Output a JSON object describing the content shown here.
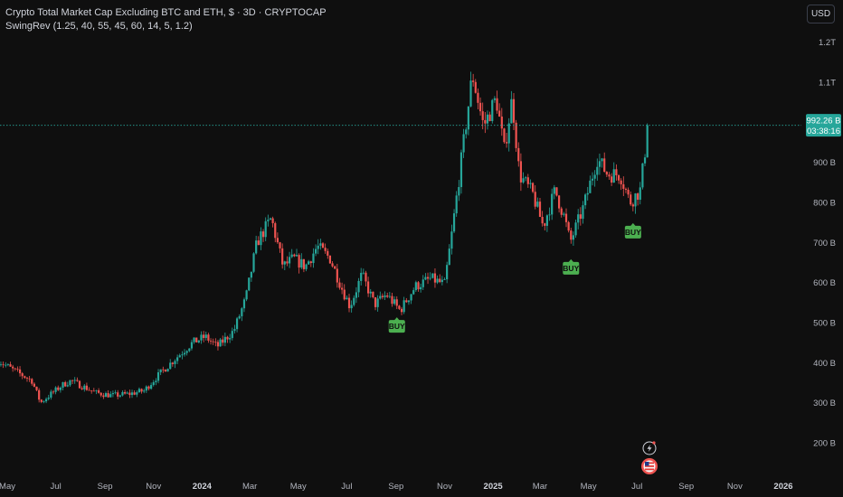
{
  "header": {
    "title": "Crypto Total Market Cap Excluding BTC and ETH, $ · 3D · CRYPTOCAP",
    "indicator": "SwingRev (1.25, 40, 55, 45, 60, 14, 5, 1.2)"
  },
  "currency_button": "USD",
  "colors": {
    "up": "#26a69a",
    "down": "#ef5350",
    "buy": "#4caf50",
    "bg": "#0f0f0f",
    "price_line": "#26a69a"
  },
  "last_price": {
    "value": "992.26 B",
    "countdown": "03:38:16"
  },
  "icons": [
    "lightning-icon",
    "flag-icon"
  ],
  "chart_data": {
    "type": "candlestick",
    "title": "Crypto Total Market Cap Excluding BTC and ETH, $ · 3D · CRYPTOCAP",
    "y_unit": "billions USD",
    "y_ticks": [
      {
        "value": 200,
        "label": "200 B"
      },
      {
        "value": 300,
        "label": "300 B"
      },
      {
        "value": 400,
        "label": "400 B"
      },
      {
        "value": 500,
        "label": "500 B"
      },
      {
        "value": 600,
        "label": "600 B"
      },
      {
        "value": 700,
        "label": "700 B"
      },
      {
        "value": 800,
        "label": "800 B"
      },
      {
        "value": 900,
        "label": "900 B"
      },
      {
        "value": 1100,
        "label": "1.1T"
      },
      {
        "value": 1200,
        "label": "1.2T"
      }
    ],
    "x_ticks": [
      {
        "date": "2023-05-01",
        "label": "May"
      },
      {
        "date": "2023-07-01",
        "label": "Jul"
      },
      {
        "date": "2023-09-01",
        "label": "Sep"
      },
      {
        "date": "2023-11-01",
        "label": "Nov"
      },
      {
        "date": "2024-01-01",
        "label": "2024",
        "bold": true
      },
      {
        "date": "2024-03-01",
        "label": "Mar"
      },
      {
        "date": "2024-05-01",
        "label": "May"
      },
      {
        "date": "2024-07-01",
        "label": "Jul"
      },
      {
        "date": "2024-09-01",
        "label": "Sep"
      },
      {
        "date": "2024-11-01",
        "label": "Nov"
      },
      {
        "date": "2025-01-01",
        "label": "2025",
        "bold": true
      },
      {
        "date": "2025-03-01",
        "label": "Mar"
      },
      {
        "date": "2025-05-01",
        "label": "May"
      },
      {
        "date": "2025-07-01",
        "label": "Jul"
      },
      {
        "date": "2025-09-01",
        "label": "Sep"
      },
      {
        "date": "2025-11-01",
        "label": "Nov"
      },
      {
        "date": "2026-01-01",
        "label": "2026",
        "bold": true
      }
    ],
    "path_points": [
      [
        "2023-04-20",
        405
      ],
      [
        "2023-05-10",
        380
      ],
      [
        "2023-06-01",
        355
      ],
      [
        "2023-06-12",
        300
      ],
      [
        "2023-06-25",
        322
      ],
      [
        "2023-07-10",
        345
      ],
      [
        "2023-07-20",
        355
      ],
      [
        "2023-08-10",
        335
      ],
      [
        "2023-08-20",
        325
      ],
      [
        "2023-09-10",
        318
      ],
      [
        "2023-10-01",
        322
      ],
      [
        "2023-10-20",
        330
      ],
      [
        "2023-11-10",
        375
      ],
      [
        "2023-12-01",
        415
      ],
      [
        "2023-12-20",
        450
      ],
      [
        "2024-01-05",
        465
      ],
      [
        "2024-01-20",
        440
      ],
      [
        "2024-02-10",
        480
      ],
      [
        "2024-02-25",
        560
      ],
      [
        "2024-03-10",
        700
      ],
      [
        "2024-03-28",
        760
      ],
      [
        "2024-04-12",
        640
      ],
      [
        "2024-04-25",
        660
      ],
      [
        "2024-05-10",
        640
      ],
      [
        "2024-05-25",
        690
      ],
      [
        "2024-06-10",
        660
      ],
      [
        "2024-06-25",
        585
      ],
      [
        "2024-07-05",
        540
      ],
      [
        "2024-07-20",
        620
      ],
      [
        "2024-08-05",
        545
      ],
      [
        "2024-08-20",
        570
      ],
      [
        "2024-09-06",
        530
      ],
      [
        "2024-09-25",
        590
      ],
      [
        "2024-10-15",
        610
      ],
      [
        "2024-11-01",
        595
      ],
      [
        "2024-11-10",
        720
      ],
      [
        "2024-11-25",
        950
      ],
      [
        "2024-12-06",
        1120
      ],
      [
        "2024-12-20",
        990
      ],
      [
        "2025-01-05",
        1060
      ],
      [
        "2025-01-15",
        930
      ],
      [
        "2025-01-25",
        1060
      ],
      [
        "2025-02-03",
        870
      ],
      [
        "2025-02-20",
        820
      ],
      [
        "2025-03-05",
        740
      ],
      [
        "2025-03-20",
        830
      ],
      [
        "2025-04-01",
        760
      ],
      [
        "2025-04-08",
        700
      ],
      [
        "2025-04-25",
        790
      ],
      [
        "2025-05-12",
        910
      ],
      [
        "2025-05-25",
        870
      ],
      [
        "2025-06-10",
        870
      ],
      [
        "2025-06-22",
        800
      ],
      [
        "2025-07-05",
        830
      ],
      [
        "2025-07-15",
        992
      ]
    ],
    "signals": [
      {
        "date": "2024-09-02",
        "price": 520,
        "label": "BUY"
      },
      {
        "date": "2025-04-09",
        "price": 665,
        "label": "BUY"
      },
      {
        "date": "2025-06-26",
        "price": 755,
        "label": "BUY"
      }
    ],
    "last_value": 992.26,
    "grid": false
  }
}
